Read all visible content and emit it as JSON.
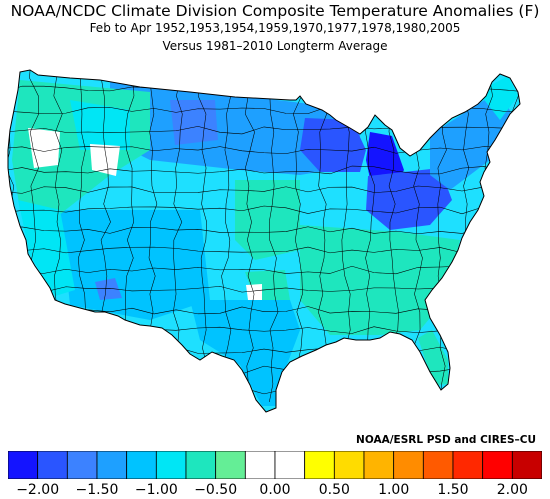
{
  "title": "NOAA/NCDC Climate Division Composite Temperature Anomalies (F)",
  "subtitle": "Feb to Apr  1952,1953,1954,1959,1970,1977,1978,1980,2005",
  "subtitle2": "Versus 1981–2010 Longterm Average",
  "credit": "NOAA/ESRL PSD and CIRES–CU",
  "colors": {
    "land_default": "#1ee0ff",
    "border": "#000000",
    "background": "#ffffff"
  },
  "legend": {
    "bins": [
      {
        "min": -2.25,
        "max": -2.0,
        "color": "#1414ff"
      },
      {
        "min": -2.0,
        "max": -1.75,
        "color": "#2a55ff"
      },
      {
        "min": -1.75,
        "max": -1.5,
        "color": "#3c82ff"
      },
      {
        "min": -1.5,
        "max": -1.25,
        "color": "#1ea0ff"
      },
      {
        "min": -1.25,
        "max": -1.0,
        "color": "#00c3ff"
      },
      {
        "min": -1.0,
        "max": -0.75,
        "color": "#00e6f5"
      },
      {
        "min": -0.75,
        "max": -0.5,
        "color": "#1ee6be"
      },
      {
        "min": -0.5,
        "max": -0.25,
        "color": "#64ee96"
      },
      {
        "min": -0.25,
        "max": 0.0,
        "color": "#ffffff"
      },
      {
        "min": 0.0,
        "max": 0.25,
        "color": "#ffffff"
      },
      {
        "min": 0.25,
        "max": 0.5,
        "color": "#ffff00"
      },
      {
        "min": 0.5,
        "max": 0.75,
        "color": "#ffdc00"
      },
      {
        "min": 0.75,
        "max": 1.0,
        "color": "#ffb400"
      },
      {
        "min": 1.0,
        "max": 1.25,
        "color": "#ff8c00"
      },
      {
        "min": 1.25,
        "max": 1.5,
        "color": "#ff5a00"
      },
      {
        "min": 1.5,
        "max": 1.75,
        "color": "#ff2800"
      },
      {
        "min": 1.75,
        "max": 2.0,
        "color": "#ff0000"
      },
      {
        "min": 2.0,
        "max": 2.25,
        "color": "#c80000"
      }
    ],
    "ticks": [
      "−2.00",
      "−1.50",
      "−1.00",
      "−0.50",
      "0.00",
      "0.50",
      "1.00",
      "1.50",
      "2.00"
    ]
  }
}
